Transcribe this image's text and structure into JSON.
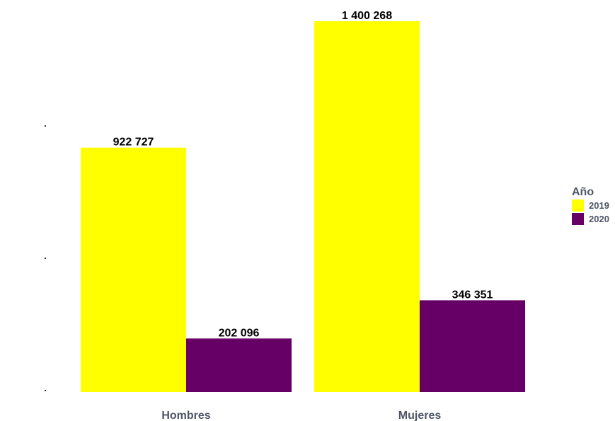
{
  "chart_data": {
    "type": "bar",
    "categories": [
      "Hombres",
      "Mujeres"
    ],
    "series": [
      {
        "name": "2019",
        "values": [
          922727,
          1400268
        ],
        "labels": [
          "922 727",
          "1 400 268"
        ],
        "color": "#ffff00"
      },
      {
        "name": "2020",
        "values": [
          202096,
          346351
        ],
        "labels": [
          "202 096",
          "346 351"
        ],
        "color": "#660066"
      }
    ],
    "legend": {
      "title": "Año",
      "position": "right"
    },
    "y_tick_labels": [
      ".",
      ".",
      "."
    ],
    "ylim": [
      0,
      1400268
    ],
    "grid": false
  }
}
